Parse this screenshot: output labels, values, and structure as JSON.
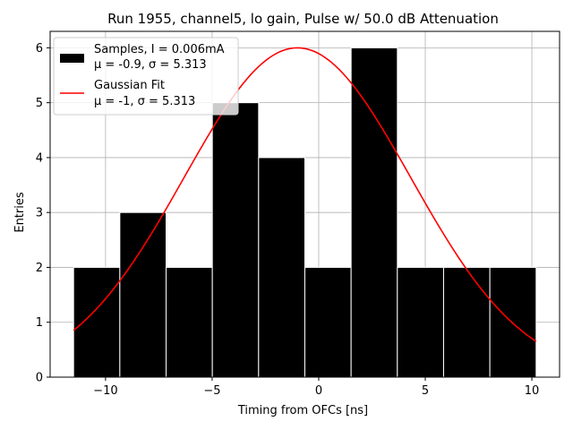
{
  "chart_data": {
    "type": "bar",
    "title": "Run 1955, channel5, lo gain, Pulse w/ 50.0 dB Attenuation",
    "xlabel": "Timing from OFCs [ns]",
    "ylabel": "Entries",
    "xlim": [
      -12.6,
      11.3
    ],
    "ylim": [
      0,
      6.3
    ],
    "xticks": [
      -10,
      -5,
      0,
      5,
      10
    ],
    "xtick_labels": [
      "−10",
      "−5",
      "0",
      "5",
      "10"
    ],
    "yticks": [
      0,
      1,
      2,
      3,
      4,
      5,
      6
    ],
    "ytick_labels": [
      "0",
      "1",
      "2",
      "3",
      "4",
      "5",
      "6"
    ],
    "grid": true,
    "legend_position": "top-left",
    "bins": {
      "edges": [
        -11.5,
        -9.33,
        -7.16,
        -4.99,
        -2.82,
        -0.65,
        1.52,
        3.69,
        5.86,
        8.03,
        10.2
      ],
      "counts": [
        2,
        3,
        2,
        5,
        4,
        2,
        6,
        2,
        2,
        2
      ],
      "color": "#000000",
      "edge_color": "#ffffff"
    },
    "series": [
      {
        "name": "Samples, I = 0.006mA",
        "name_line2": "μ = -0.9, σ = 5.313",
        "kind": "histogram",
        "color": "#000000"
      },
      {
        "name": "Gaussian Fit",
        "name_line2": "μ = -1, σ = 5.313",
        "kind": "line",
        "color": "#ff0000",
        "mu": -1,
        "sigma": 5.313,
        "amplitude": 6.0,
        "x_range": [
          -11.5,
          10.2
        ]
      }
    ]
  }
}
